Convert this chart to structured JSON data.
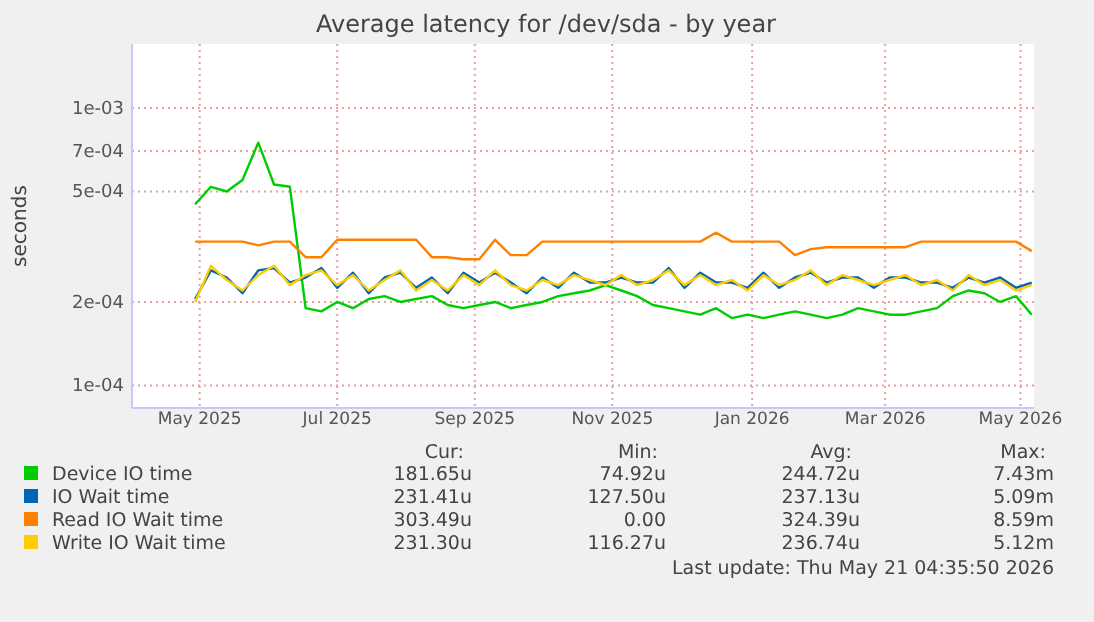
{
  "chart_data": {
    "type": "line",
    "title": "Average latency for /dev/sda - by year",
    "ylabel": "seconds",
    "log": true,
    "grid": true,
    "legend": "bottom",
    "marker": "none",
    "line_style": "solid",
    "xlim": [
      "2025-04-16",
      "2026-05-21"
    ],
    "ylim": [
      8.3e-05,
      0.0017
    ],
    "xticks": [
      {
        "value": "2025-05-16",
        "label": "May 2025"
      },
      {
        "value": "2025-07-16",
        "label": "Jul 2025"
      },
      {
        "value": "2025-09-15",
        "label": "Sep 2025"
      },
      {
        "value": "2025-11-15",
        "label": "Nov 2025"
      },
      {
        "value": "2026-01-16",
        "label": "Jan 2026"
      },
      {
        "value": "2026-03-16",
        "label": "Mar 2026"
      },
      {
        "value": "2026-05-15",
        "label": "May 2026"
      }
    ],
    "yticks": [
      {
        "value": 0.0001,
        "label": "1e-04"
      },
      {
        "value": 0.0002,
        "label": "2e-04"
      },
      {
        "value": 0.0005,
        "label": "5e-04"
      },
      {
        "value": 0.0007,
        "label": "7e-04"
      },
      {
        "value": 0.001,
        "label": "1e-03"
      }
    ],
    "x": [
      "2025-05-14",
      "2025-05-21",
      "2025-05-28",
      "2025-06-04",
      "2025-06-11",
      "2025-06-18",
      "2025-06-25",
      "2025-07-02",
      "2025-07-09",
      "2025-07-16",
      "2025-07-23",
      "2025-07-30",
      "2025-08-06",
      "2025-08-13",
      "2025-08-20",
      "2025-08-27",
      "2025-09-03",
      "2025-09-10",
      "2025-09-17",
      "2025-09-24",
      "2025-10-01",
      "2025-10-08",
      "2025-10-15",
      "2025-10-22",
      "2025-10-29",
      "2025-11-05",
      "2025-11-12",
      "2025-11-19",
      "2025-11-26",
      "2025-12-03",
      "2025-12-10",
      "2025-12-17",
      "2025-12-24",
      "2025-12-31",
      "2026-01-07",
      "2026-01-14",
      "2026-01-21",
      "2026-01-28",
      "2026-02-04",
      "2026-02-11",
      "2026-02-18",
      "2026-02-25",
      "2026-03-04",
      "2026-03-11",
      "2026-03-18",
      "2026-03-25",
      "2026-04-01",
      "2026-04-08",
      "2026-04-15",
      "2026-04-22",
      "2026-04-29",
      "2026-05-06",
      "2026-05-13",
      "2026-05-20"
    ],
    "series": [
      {
        "name": "Device IO time",
        "color": "#00cc00",
        "values": [
          0.00045,
          0.00052,
          0.0005,
          0.00055,
          0.00075,
          0.00053,
          0.00052,
          0.00019,
          0.000185,
          0.0002,
          0.00019,
          0.000205,
          0.00021,
          0.0002,
          0.000205,
          0.00021,
          0.000195,
          0.00019,
          0.000195,
          0.0002,
          0.00019,
          0.000195,
          0.0002,
          0.00021,
          0.000215,
          0.00022,
          0.00023,
          0.00022,
          0.00021,
          0.000195,
          0.00019,
          0.000185,
          0.00018,
          0.00019,
          0.000175,
          0.00018,
          0.000175,
          0.00018,
          0.000185,
          0.00018,
          0.000175,
          0.00018,
          0.00019,
          0.000185,
          0.00018,
          0.00018,
          0.000185,
          0.00019,
          0.00021,
          0.00022,
          0.000215,
          0.0002,
          0.00021,
          0.00018
        ]
      },
      {
        "name": "IO Wait time",
        "color": "#0066b3",
        "values": [
          0.000205,
          0.00026,
          0.000245,
          0.000215,
          0.00026,
          0.000265,
          0.000235,
          0.000245,
          0.000265,
          0.000225,
          0.000255,
          0.000215,
          0.000245,
          0.000255,
          0.000225,
          0.000245,
          0.000215,
          0.000255,
          0.000235,
          0.000255,
          0.000235,
          0.000215,
          0.000245,
          0.000225,
          0.000255,
          0.000235,
          0.000235,
          0.000245,
          0.000235,
          0.000235,
          0.000265,
          0.000225,
          0.000255,
          0.000235,
          0.000235,
          0.000225,
          0.000255,
          0.000225,
          0.000245,
          0.000255,
          0.000235,
          0.000245,
          0.000245,
          0.000225,
          0.000245,
          0.000245,
          0.000235,
          0.000235,
          0.000225,
          0.000245,
          0.000235,
          0.000245,
          0.000225,
          0.000235
        ]
      },
      {
        "name": "Read IO Wait time",
        "color": "#ff8000",
        "values": [
          0.00033,
          0.00033,
          0.00033,
          0.00033,
          0.00032,
          0.00033,
          0.00033,
          0.00029,
          0.00029,
          0.000335,
          0.000335,
          0.000335,
          0.000335,
          0.000335,
          0.000335,
          0.00029,
          0.00029,
          0.000285,
          0.000285,
          0.000335,
          0.000295,
          0.000295,
          0.00033,
          0.00033,
          0.00033,
          0.00033,
          0.00033,
          0.00033,
          0.00033,
          0.00033,
          0.00033,
          0.00033,
          0.00033,
          0.000355,
          0.00033,
          0.00033,
          0.00033,
          0.00033,
          0.000295,
          0.00031,
          0.000315,
          0.000315,
          0.000315,
          0.000315,
          0.000315,
          0.000315,
          0.00033,
          0.00033,
          0.00033,
          0.00033,
          0.00033,
          0.00033,
          0.00033,
          0.000305
        ]
      },
      {
        "name": "Write IO Wait time",
        "color": "#ffcc00",
        "values": [
          0.0002,
          0.00027,
          0.00024,
          0.00022,
          0.00025,
          0.00027,
          0.00023,
          0.00025,
          0.00026,
          0.00023,
          0.00025,
          0.00022,
          0.00024,
          0.00026,
          0.00022,
          0.00024,
          0.00022,
          0.00025,
          0.00023,
          0.00026,
          0.00023,
          0.00022,
          0.00024,
          0.00023,
          0.00025,
          0.00024,
          0.00023,
          0.00025,
          0.00023,
          0.00024,
          0.00026,
          0.00023,
          0.00025,
          0.00023,
          0.00024,
          0.00022,
          0.00025,
          0.00023,
          0.00024,
          0.00026,
          0.00023,
          0.00025,
          0.00024,
          0.00023,
          0.00024,
          0.00025,
          0.00023,
          0.00024,
          0.00022,
          0.00025,
          0.00023,
          0.00024,
          0.00022,
          0.00023
        ]
      }
    ],
    "annotations": [
      "Cur:",
      "Min:",
      "Avg:",
      "Max:",
      "181.65u",
      "74.92u",
      "244.72u",
      "7.43m",
      "231.41u",
      "127.50u",
      "237.13u",
      "5.09m",
      "303.49u",
      "0.00",
      "324.39u",
      "8.59m",
      "231.30u",
      "116.27u",
      "236.74u",
      "5.12m",
      "Last update: Thu May 21 04:35:50 2026"
    ]
  }
}
